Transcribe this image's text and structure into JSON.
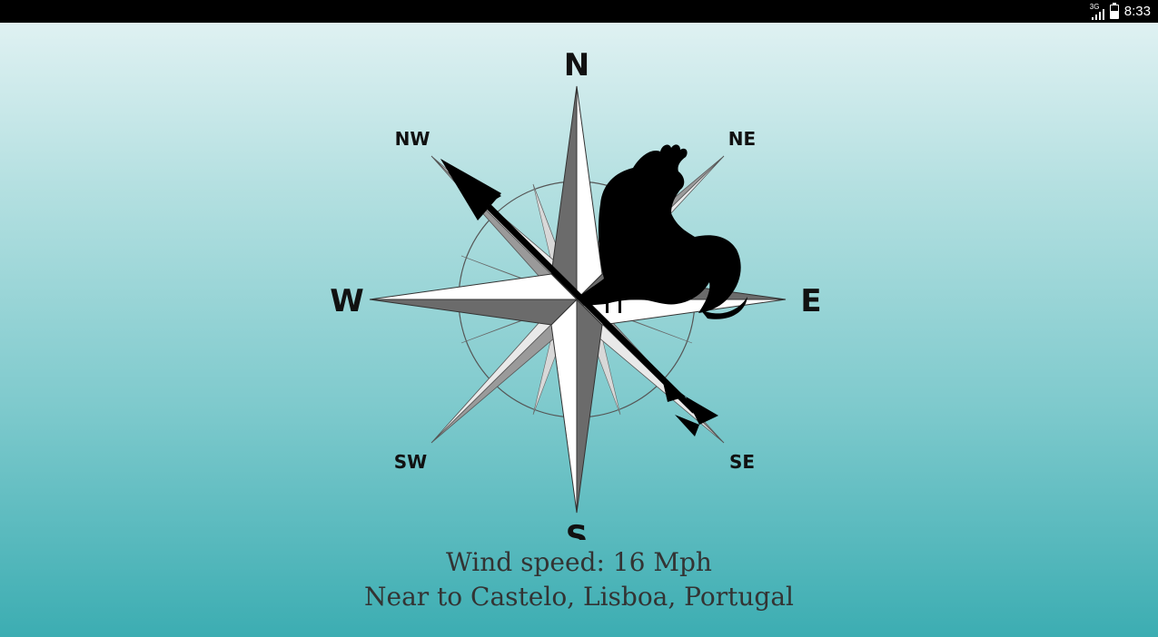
{
  "status_bar": {
    "network_label": "3G",
    "time": "8:33",
    "battery_level": 0.55,
    "icons": [
      "signal-icon",
      "battery-icon"
    ]
  },
  "compass": {
    "cardinals": [
      "N",
      "E",
      "S",
      "W"
    ],
    "intercardinals": [
      "NE",
      "SE",
      "SW",
      "NW"
    ],
    "emblem": "rooster-icon",
    "arrow_direction_deg": 315
  },
  "wind_speed_text": "Wind speed: 16 Mph",
  "location_text": "Near to Castelo, Lisboa, Portugal",
  "colors": {
    "bg_top": "#dff1f2",
    "bg_bottom": "#3cadb2",
    "text": "#333333",
    "arrow": "#000000"
  }
}
